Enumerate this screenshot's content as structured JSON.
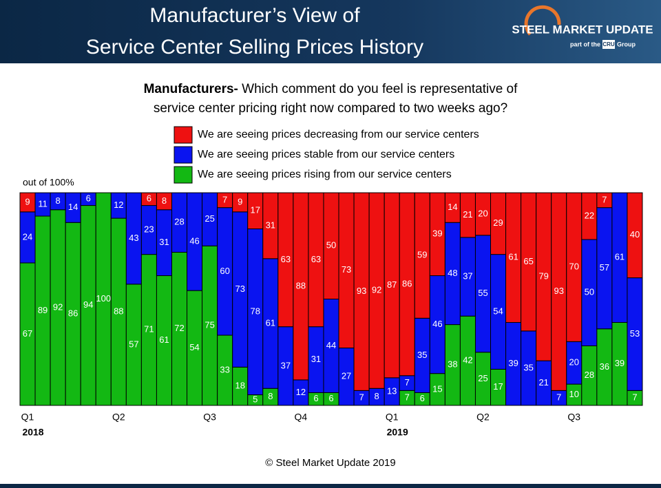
{
  "header": {
    "title_lines": [
      "Manufacturer’s View of",
      "Service Center Selling Prices History"
    ],
    "logo": "STEEL MARKET UPDATE",
    "logo_sub": "part of the",
    "logo_cru": "CRU",
    "logo_group": "Group"
  },
  "chart_data": {
    "type": "bar",
    "stacked": true,
    "subtitle_bold": "Manufacturers-",
    "subtitle_lines": [
      "Which comment do you feel is representative of",
      "service center pricing right now compared to two weeks ago?"
    ],
    "ylabel": "out of 100%",
    "ylim": [
      0,
      100
    ],
    "categories": [
      "Q1",
      null,
      null,
      null,
      null,
      null,
      "Q2",
      null,
      null,
      null,
      null,
      null,
      "Q3",
      null,
      null,
      null,
      null,
      null,
      "Q4",
      null,
      null,
      null,
      null,
      null,
      "Q1",
      null,
      null,
      null,
      null,
      null,
      "Q2",
      null,
      null,
      null,
      null,
      null,
      "Q3",
      null,
      null,
      null,
      null
    ],
    "years": [
      "2018",
      null,
      null,
      null,
      null,
      null,
      null,
      null,
      null,
      null,
      null,
      null,
      null,
      null,
      null,
      null,
      null,
      null,
      null,
      null,
      null,
      null,
      null,
      null,
      "2019",
      null,
      null,
      null,
      null,
      null,
      null,
      null,
      null,
      null,
      null,
      null,
      null,
      null,
      null,
      null,
      null
    ],
    "series": [
      {
        "name": "We are seeing prices decreasing from our service centers",
        "color": "#ee1111",
        "values": [
          9,
          0,
          0,
          0,
          0,
          0,
          0,
          0,
          6,
          8,
          0,
          0,
          0,
          7,
          9,
          17,
          31,
          63,
          88,
          63,
          50,
          73,
          93,
          92,
          87,
          86,
          59,
          39,
          14,
          21,
          20,
          29,
          61,
          65,
          79,
          93,
          70,
          22,
          7,
          0,
          40
        ]
      },
      {
        "name": "We are seeing prices stable from our service centers",
        "color": "#0a14f0",
        "values": [
          24,
          11,
          8,
          14,
          6,
          0,
          12,
          43,
          23,
          31,
          28,
          46,
          25,
          60,
          73,
          78,
          61,
          37,
          12,
          31,
          44,
          27,
          7,
          8,
          13,
          7,
          35,
          46,
          48,
          37,
          55,
          54,
          39,
          35,
          21,
          7,
          20,
          50,
          57,
          61,
          53
        ]
      },
      {
        "name": "We are seeing prices rising from our service centers",
        "color": "#13b813",
        "values": [
          67,
          89,
          92,
          86,
          94,
          100,
          88,
          57,
          71,
          61,
          72,
          54,
          75,
          33,
          18,
          5,
          8,
          0,
          0,
          6,
          6,
          0,
          0,
          0,
          0,
          7,
          6,
          15,
          38,
          42,
          25,
          17,
          0,
          0,
          0,
          0,
          10,
          28,
          36,
          39,
          7
        ]
      }
    ],
    "footer": "© Steel Market Update 2019"
  }
}
